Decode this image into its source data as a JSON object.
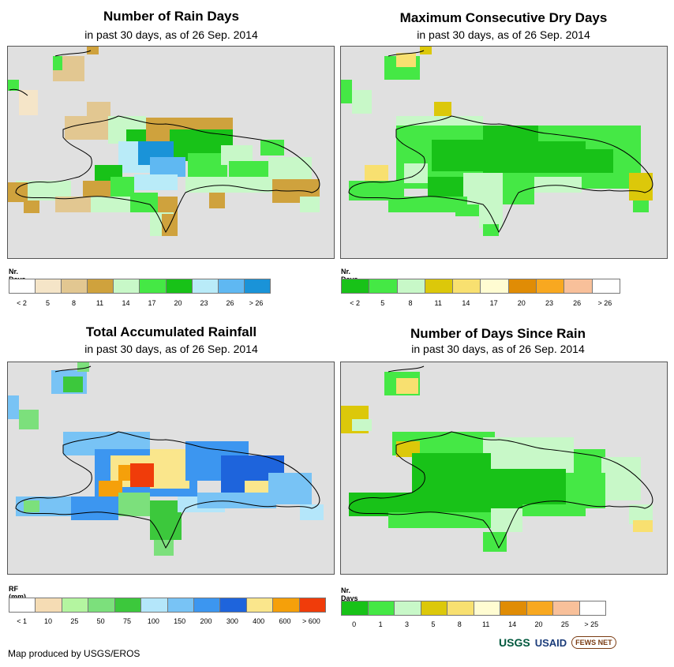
{
  "panels": [
    {
      "title": "Number of Rain Days",
      "subtitle": "in past 30 days, as of 26 Sep. 2014",
      "legend_unit": "Nr. Days",
      "legend_colors": [
        "#ffffff",
        "#f5e5c8",
        "#e2c791",
        "#cfa23d",
        "#c8f8c8",
        "#45e845",
        "#18c218",
        "#b9ebf8",
        "#5fb8f2",
        "#1a93d8"
      ],
      "legend_labels": [
        "< 2",
        "5",
        "8",
        "11",
        "14",
        "17",
        "20",
        "23",
        "26",
        "> 26"
      ],
      "fill_color": "#c8f8c8"
    },
    {
      "title": "Maximum Consecutive Dry Days",
      "subtitle": "in past 30 days, as of 26 Sep. 2014",
      "legend_unit": "Nr. Days",
      "legend_colors": [
        "#18c218",
        "#45e845",
        "#c8f8c8",
        "#dcc80a",
        "#f8e070",
        "#fffcd2",
        "#e08c05",
        "#f8a820",
        "#f8c09a",
        "#ffffff"
      ],
      "legend_labels": [
        "< 2",
        "5",
        "8",
        "11",
        "14",
        "17",
        "20",
        "23",
        "26",
        "> 26"
      ],
      "fill_color": "#18c218"
    },
    {
      "title": "Total Accumulated Rainfall",
      "subtitle": "in past 30 days, as of 26 Sep. 2014",
      "legend_unit": "RF (mm)",
      "legend_colors": [
        "#ffffff",
        "#f5dcb4",
        "#b4f5a0",
        "#7ce07c",
        "#3cc83c",
        "#b4e6fa",
        "#78c3f5",
        "#3c96f0",
        "#1e64dc",
        "#fae68c",
        "#f5a00a",
        "#f03c0a"
      ],
      "legend_labels": [
        "< 1",
        "10",
        "25",
        "50",
        "75",
        "100",
        "150",
        "200",
        "300",
        "400",
        "600",
        "> 600"
      ],
      "fill_color": "#3c96f0"
    },
    {
      "title": "Number of Days Since Rain",
      "subtitle": "in past 30 days, as of 26 Sep. 2014",
      "legend_unit": "Nr. Days",
      "legend_colors": [
        "#18c218",
        "#45e845",
        "#c8f8c8",
        "#dcc80a",
        "#f8e070",
        "#fffcd2",
        "#e08c05",
        "#f8a820",
        "#f8c09a",
        "#ffffff"
      ],
      "legend_labels": [
        "0",
        "1",
        "3",
        "5",
        "8",
        "11",
        "14",
        "20",
        "25",
        "> 25"
      ],
      "fill_color": "#18c218"
    }
  ],
  "credit": "Map produced by USGS/EROS",
  "logos": {
    "usgs": "USGS",
    "usaid": "USAID",
    "fews": "FEWS NET"
  }
}
